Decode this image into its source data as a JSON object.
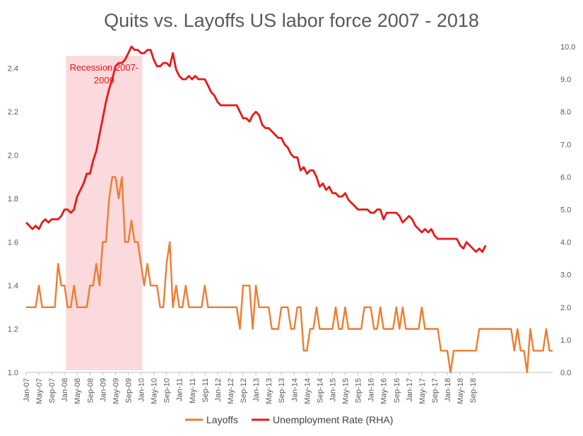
{
  "chart_data": {
    "type": "line",
    "title": "Quits vs. Layoffs US labor force 2007 - 2018",
    "x_tick_labels": [
      "Jan-07",
      "May-07",
      "Sep-07",
      "Jan-08",
      "May-08",
      "Sep-08",
      "Jan-09",
      "May-09",
      "Sep-09",
      "Jan-10",
      "May-10",
      "Sep-10",
      "Jan-11",
      "May-11",
      "Sep-11",
      "Jan-12",
      "May-12",
      "Sep-12",
      "Jan-13",
      "May-13",
      "Sep-13",
      "Jan-14",
      "May-14",
      "Sep-14",
      "Jan-15",
      "May-15",
      "Sep-15",
      "Jan-16",
      "May-16",
      "Sep-16",
      "Jan-17",
      "May-17",
      "Sep-17",
      "Jan-18",
      "May-18",
      "Sep-18"
    ],
    "y_left_ticks": [
      "1.0",
      "1.2",
      "1.4",
      "1.6",
      "1.8",
      "2.0",
      "2.2",
      "2.4"
    ],
    "y_left_range": [
      1.0,
      2.5
    ],
    "y_right_ticks": [
      "0.0",
      "1.0",
      "2.0",
      "3.0",
      "4.0",
      "5.0",
      "6.0",
      "7.0",
      "8.0",
      "9.0",
      "10.0"
    ],
    "y_right_range": [
      0,
      10
    ],
    "grid": false,
    "legend_position": "bottom",
    "annotation": {
      "label_line1": "Recession 2007-",
      "label_line2": "2009",
      "start_month_index": 12,
      "end_month_index": 36,
      "color": "#fadadd"
    },
    "series": [
      {
        "name": "Layoffs",
        "axis": "left",
        "color": "#ed7d31",
        "values": [
          1.3,
          1.3,
          1.3,
          1.3,
          1.4,
          1.3,
          1.3,
          1.3,
          1.3,
          1.3,
          1.5,
          1.4,
          1.4,
          1.3,
          1.3,
          1.4,
          1.3,
          1.3,
          1.3,
          1.3,
          1.4,
          1.4,
          1.5,
          1.4,
          1.6,
          1.6,
          1.8,
          1.9,
          1.9,
          1.8,
          1.9,
          1.6,
          1.6,
          1.7,
          1.6,
          1.6,
          1.5,
          1.4,
          1.5,
          1.4,
          1.4,
          1.4,
          1.3,
          1.3,
          1.5,
          1.6,
          1.3,
          1.4,
          1.3,
          1.3,
          1.4,
          1.3,
          1.3,
          1.3,
          1.3,
          1.3,
          1.4,
          1.3,
          1.3,
          1.3,
          1.3,
          1.3,
          1.3,
          1.3,
          1.3,
          1.3,
          1.3,
          1.2,
          1.4,
          1.4,
          1.4,
          1.2,
          1.4,
          1.3,
          1.3,
          1.3,
          1.3,
          1.2,
          1.2,
          1.2,
          1.3,
          1.3,
          1.3,
          1.2,
          1.2,
          1.3,
          1.3,
          1.1,
          1.1,
          1.2,
          1.2,
          1.3,
          1.2,
          1.2,
          1.2,
          1.2,
          1.2,
          1.3,
          1.2,
          1.2,
          1.3,
          1.2,
          1.2,
          1.2,
          1.2,
          1.2,
          1.3,
          1.3,
          1.3,
          1.2,
          1.2,
          1.3,
          1.2,
          1.2,
          1.2,
          1.2,
          1.3,
          1.2,
          1.3,
          1.2,
          1.2,
          1.2,
          1.2,
          1.2,
          1.3,
          1.2,
          1.2,
          1.2,
          1.2,
          1.2,
          1.1,
          1.1,
          1.1,
          1.0,
          1.1,
          1.1,
          1.1,
          1.1,
          1.1,
          1.1,
          1.1,
          1.1,
          1.2,
          1.2,
          1.2,
          1.2,
          1.2,
          1.2,
          1.2,
          1.2,
          1.2,
          1.2,
          1.2,
          1.1,
          1.2,
          1.1,
          1.1,
          1.0,
          1.2,
          1.1,
          1.1,
          1.1,
          1.1,
          1.2,
          1.1,
          1.1
        ]
      },
      {
        "name": "Unemployment Rate (RHA)",
        "axis": "right",
        "color": "#e81818",
        "values": [
          4.6,
          4.5,
          4.4,
          4.5,
          4.4,
          4.6,
          4.7,
          4.6,
          4.7,
          4.7,
          4.7,
          4.8,
          5.0,
          5.0,
          4.9,
          5.0,
          5.4,
          5.6,
          5.8,
          6.1,
          6.1,
          6.5,
          6.8,
          7.3,
          7.8,
          8.3,
          8.7,
          9.0,
          9.4,
          9.5,
          9.5,
          9.6,
          9.8,
          10.0,
          9.9,
          9.9,
          9.8,
          9.8,
          9.9,
          9.9,
          9.6,
          9.4,
          9.4,
          9.5,
          9.5,
          9.4,
          9.8,
          9.3,
          9.1,
          9.0,
          9.0,
          9.1,
          9.0,
          9.1,
          9.0,
          9.0,
          9.0,
          8.8,
          8.6,
          8.5,
          8.3,
          8.2,
          8.2,
          8.2,
          8.2,
          8.2,
          8.2,
          8.0,
          7.8,
          7.8,
          7.7,
          7.9,
          8.0,
          7.9,
          7.6,
          7.5,
          7.5,
          7.4,
          7.3,
          7.2,
          7.2,
          7.0,
          6.9,
          6.7,
          6.6,
          6.6,
          6.2,
          6.3,
          6.1,
          6.2,
          6.2,
          6.0,
          5.7,
          5.8,
          5.6,
          5.7,
          5.5,
          5.5,
          5.4,
          5.4,
          5.5,
          5.3,
          5.2,
          5.1,
          5.0,
          5.0,
          5.0,
          5.0,
          4.9,
          4.9,
          5.0,
          5.0,
          4.7,
          4.9,
          4.9,
          4.9,
          4.9,
          4.8,
          4.6,
          4.7,
          4.8,
          4.7,
          4.5,
          4.4,
          4.3,
          4.4,
          4.3,
          4.4,
          4.2,
          4.1,
          4.1,
          4.1,
          4.1,
          4.1,
          4.1,
          4.1,
          3.9,
          3.8,
          4.0,
          3.9,
          3.8,
          3.7,
          3.8,
          3.7,
          3.9
        ]
      }
    ]
  }
}
